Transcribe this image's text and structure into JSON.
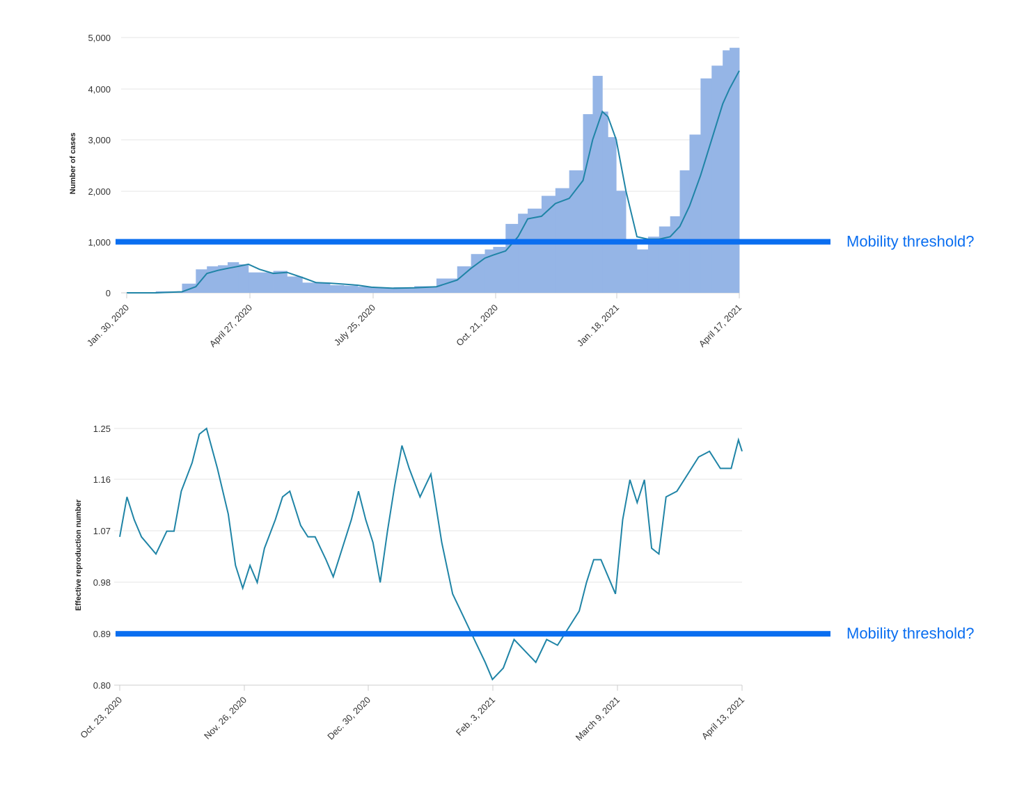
{
  "colors": {
    "bar": "#95b5e6",
    "line": "#1f84a6",
    "threshold": "#0a6ef0",
    "grid": "#e6e6e6",
    "axis": "#cccccc",
    "text": "#333333"
  },
  "chart_data": [
    {
      "type": "bar",
      "overlay": "line (moving average)",
      "xlabel": "",
      "ylabel": "Number of cases",
      "ylim": [
        0,
        5000
      ],
      "yticks": [
        "0",
        "1,000",
        "2,000",
        "3,000",
        "4,000",
        "5,000"
      ],
      "xtick_labels": [
        "Jan. 30, 2020",
        "April 27, 2020",
        "July 25, 2020",
        "Oct. 21, 2020",
        "Jan. 18, 2021",
        "April 17, 2021"
      ],
      "grid": true,
      "threshold": {
        "value": 1000,
        "label": "Mobility threshold?"
      },
      "series": [
        {
          "type": "bar",
          "x": [
            "2020-01-30",
            "2020-02-20",
            "2020-03-10",
            "2020-03-20",
            "2020-03-28",
            "2020-04-05",
            "2020-04-12",
            "2020-04-20",
            "2020-04-27",
            "2020-05-05",
            "2020-05-15",
            "2020-05-25",
            "2020-06-05",
            "2020-06-15",
            "2020-06-25",
            "2020-07-05",
            "2020-07-15",
            "2020-07-25",
            "2020-08-10",
            "2020-08-25",
            "2020-09-10",
            "2020-09-25",
            "2020-10-05",
            "2020-10-15",
            "2020-10-21",
            "2020-10-30",
            "2020-11-08",
            "2020-11-15",
            "2020-11-25",
            "2020-12-05",
            "2020-12-15",
            "2020-12-25",
            "2021-01-01",
            "2021-01-08",
            "2021-01-12",
            "2021-01-18",
            "2021-01-25",
            "2021-02-02",
            "2021-02-10",
            "2021-02-18",
            "2021-02-26",
            "2021-03-05",
            "2021-03-12",
            "2021-03-20",
            "2021-03-28",
            "2021-04-05",
            "2021-04-10",
            "2021-04-17"
          ],
          "values": [
            0,
            0,
            30,
            180,
            460,
            520,
            540,
            600,
            560,
            400,
            400,
            430,
            320,
            200,
            200,
            150,
            140,
            120,
            100,
            110,
            130,
            280,
            520,
            760,
            850,
            900,
            1350,
            1550,
            1650,
            1900,
            2050,
            2400,
            3500,
            4250,
            3550,
            3050,
            2000,
            1050,
            850,
            1100,
            1300,
            1500,
            2400,
            3100,
            4200,
            4450,
            4750,
            4800
          ]
        },
        {
          "type": "line",
          "x": [
            "2020-01-30",
            "2020-02-20",
            "2020-03-10",
            "2020-03-20",
            "2020-03-28",
            "2020-04-05",
            "2020-04-12",
            "2020-04-20",
            "2020-04-27",
            "2020-05-05",
            "2020-05-15",
            "2020-05-25",
            "2020-06-05",
            "2020-06-15",
            "2020-06-25",
            "2020-07-05",
            "2020-07-15",
            "2020-07-25",
            "2020-08-10",
            "2020-08-25",
            "2020-09-10",
            "2020-09-25",
            "2020-10-05",
            "2020-10-15",
            "2020-10-21",
            "2020-10-30",
            "2020-11-08",
            "2020-11-15",
            "2020-11-25",
            "2020-12-05",
            "2020-12-15",
            "2020-12-25",
            "2021-01-01",
            "2021-01-08",
            "2021-01-12",
            "2021-01-18",
            "2021-01-25",
            "2021-02-02",
            "2021-02-10",
            "2021-02-18",
            "2021-02-26",
            "2021-03-05",
            "2021-03-12",
            "2021-03-20",
            "2021-03-28",
            "2021-04-05",
            "2021-04-10",
            "2021-04-17"
          ],
          "values": [
            0,
            0,
            20,
            120,
            380,
            440,
            480,
            520,
            560,
            460,
            380,
            400,
            300,
            200,
            190,
            170,
            150,
            110,
            90,
            100,
            120,
            250,
            480,
            680,
            740,
            820,
            1100,
            1450,
            1500,
            1750,
            1850,
            2200,
            3000,
            3550,
            3450,
            3000,
            2000,
            1100,
            1050,
            1050,
            1100,
            1300,
            1700,
            2300,
            3000,
            3700,
            4000,
            4350
          ]
        }
      ]
    },
    {
      "type": "line",
      "xlabel": "",
      "ylabel": "Effective reproduction number",
      "ylim": [
        0.8,
        1.25
      ],
      "yticks": [
        "0.80",
        "0.89",
        "0.98",
        "1.07",
        "1.16",
        "1.25"
      ],
      "xtick_labels": [
        "Oct. 23, 2020",
        "Nov. 26, 2020",
        "Dec. 30, 2020",
        "Feb. 3, 2021",
        "March 9, 2021",
        "April 13, 2021"
      ],
      "grid": true,
      "threshold": {
        "value": 0.89,
        "label": "Mobility threshold?"
      },
      "series": [
        {
          "x": [
            "2020-10-23",
            "2020-10-25",
            "2020-10-27",
            "2020-10-29",
            "2020-11-02",
            "2020-11-05",
            "2020-11-07",
            "2020-11-09",
            "2020-11-12",
            "2020-11-14",
            "2020-11-16",
            "2020-11-19",
            "2020-11-22",
            "2020-11-24",
            "2020-11-26",
            "2020-11-28",
            "2020-11-30",
            "2020-12-02",
            "2020-12-05",
            "2020-12-07",
            "2020-12-09",
            "2020-12-12",
            "2020-12-14",
            "2020-12-16",
            "2020-12-19",
            "2020-12-21",
            "2020-12-23",
            "2020-12-26",
            "2020-12-28",
            "2020-12-30",
            "2021-01-01",
            "2021-01-03",
            "2021-01-05",
            "2021-01-07",
            "2021-01-09",
            "2021-01-11",
            "2021-01-14",
            "2021-01-17",
            "2021-01-20",
            "2021-01-23",
            "2021-01-26",
            "2021-01-29",
            "2021-02-01",
            "2021-02-03",
            "2021-02-06",
            "2021-02-09",
            "2021-02-12",
            "2021-02-15",
            "2021-02-18",
            "2021-02-21",
            "2021-02-24",
            "2021-02-27",
            "2021-03-01",
            "2021-03-03",
            "2021-03-05",
            "2021-03-07",
            "2021-03-09",
            "2021-03-11",
            "2021-03-13",
            "2021-03-15",
            "2021-03-17",
            "2021-03-19",
            "2021-03-21",
            "2021-03-23",
            "2021-03-26",
            "2021-03-29",
            "2021-04-01",
            "2021-04-04",
            "2021-04-07",
            "2021-04-10",
            "2021-04-12",
            "2021-04-13"
          ],
          "values": [
            1.06,
            1.13,
            1.09,
            1.06,
            1.03,
            1.07,
            1.07,
            1.14,
            1.19,
            1.24,
            1.25,
            1.18,
            1.1,
            1.01,
            0.97,
            1.01,
            0.98,
            1.04,
            1.09,
            1.13,
            1.14,
            1.08,
            1.06,
            1.06,
            1.02,
            0.99,
            1.03,
            1.09,
            1.14,
            1.09,
            1.05,
            0.98,
            1.07,
            1.15,
            1.22,
            1.18,
            1.13,
            1.17,
            1.05,
            0.96,
            0.92,
            0.88,
            0.84,
            0.81,
            0.83,
            0.88,
            0.86,
            0.84,
            0.88,
            0.87,
            0.9,
            0.93,
            0.98,
            1.02,
            1.02,
            0.99,
            0.96,
            1.09,
            1.16,
            1.12,
            1.16,
            1.04,
            1.03,
            1.13,
            1.14,
            1.17,
            1.2,
            1.21,
            1.18,
            1.18,
            1.23,
            1.21
          ]
        }
      ]
    }
  ]
}
